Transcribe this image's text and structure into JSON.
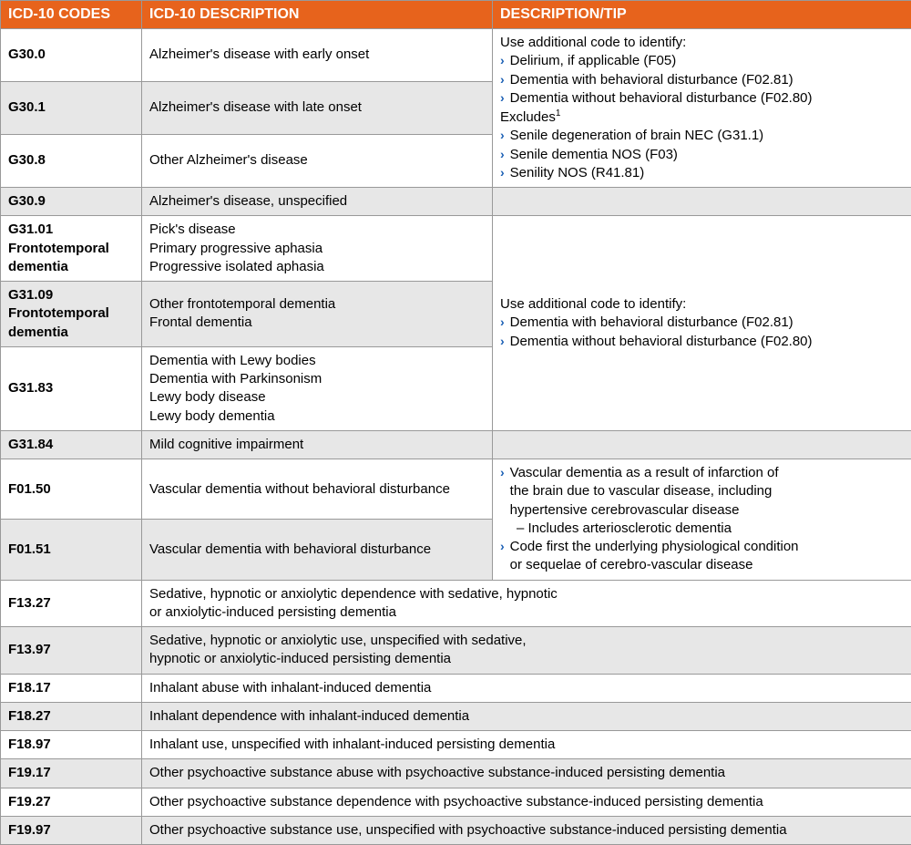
{
  "header": {
    "codes": "ICD-10 CODES",
    "desc": "ICD-10 DESCRIPTION",
    "tip": "DESCRIPTION/TIP"
  },
  "r": {
    "g300": {
      "code": "G30.0",
      "desc": "Alzheimer's disease with early onset"
    },
    "g301": {
      "code": "G30.1",
      "desc": "Alzheimer's disease with late onset"
    },
    "g308": {
      "code": "G30.8",
      "desc": "Other Alzheimer's disease"
    },
    "g309": {
      "code": "G30.9",
      "desc": "Alzheimer's disease, unspecified"
    },
    "g3101": {
      "code": "G31.01",
      "sub": "Frontotemporal dementia",
      "d1": "Pick's disease",
      "d2": "Primary progressive aphasia",
      "d3": "Progressive isolated aphasia"
    },
    "g3109": {
      "code": "G31.09",
      "sub": "Frontotemporal dementia",
      "d1": "Other frontotemporal dementia",
      "d2": "Frontal dementia"
    },
    "g3183": {
      "code": "G31.83",
      "d1": "Dementia with Lewy bodies",
      "d2": "Dementia with Parkinsonism",
      "d3": "Lewy body disease",
      "d4": "Lewy body dementia"
    },
    "g3184": {
      "code": "G31.84",
      "desc": "Mild cognitive impairment"
    },
    "f0150": {
      "code": "F01.50",
      "desc": "Vascular dementia without behavioral disturbance"
    },
    "f0151": {
      "code": "F01.51",
      "desc": "Vascular dementia with behavioral disturbance"
    },
    "f1327": {
      "code": "F13.27",
      "d1": "Sedative, hypnotic or anxiolytic dependence with sedative, hypnotic",
      "d2": "or anxiolytic-induced persisting dementia"
    },
    "f1397": {
      "code": "F13.97",
      "d1": "Sedative, hypnotic or anxiolytic use, unspecified with sedative,",
      "d2": "hypnotic or anxiolytic-induced persisting dementia"
    },
    "f1817": {
      "code": "F18.17",
      "desc": "Inhalant abuse with inhalant-induced dementia"
    },
    "f1827": {
      "code": "F18.27",
      "desc": "Inhalant dependence with inhalant-induced dementia"
    },
    "f1897": {
      "code": "F18.97",
      "desc": "Inhalant use, unspecified with inhalant-induced persisting dementia"
    },
    "f1917": {
      "code": "F19.17",
      "desc": "Other psychoactive substance abuse with psychoactive substance-induced persisting dementia"
    },
    "f1927": {
      "code": "F19.27",
      "desc": "Other psychoactive substance dependence with psychoactive substance-induced persisting dementia"
    },
    "f1997": {
      "code": "F19.97",
      "desc": "Other psychoactive substance use, unspecified with psychoactive substance-induced persisting dementia"
    }
  },
  "tips": {
    "alz": {
      "intro": "Use additional code to identify:",
      "b1": "Delirium, if applicable (F05)",
      "b2": "Dementia with behavioral disturbance (F02.81)",
      "b3": "Dementia without behavioral disturbance (F02.80)",
      "ex": "Excludes",
      "sup": "1",
      "b4": "Senile degeneration of brain NEC (G31.1)",
      "b5": "Senile dementia NOS (F03)",
      "b6": "Senility NOS (R41.81)"
    },
    "ftd": {
      "intro": "Use additional code to identify:",
      "b1": "Dementia with behavioral disturbance (F02.81)",
      "b2": "Dementia without behavioral disturbance (F02.80)"
    },
    "vasc": {
      "b1a": "Vascular dementia as a result of infarction of",
      "b1b": "the brain due to vascular disease, including",
      "b1c": "hypertensive cerebrovascular disease",
      "sub": "–  Includes arteriosclerotic dementia",
      "b2a": "Code first the underlying physiological condition",
      "b2b": "or sequelae of cerebro-vascular disease"
    }
  },
  "chev": "›"
}
